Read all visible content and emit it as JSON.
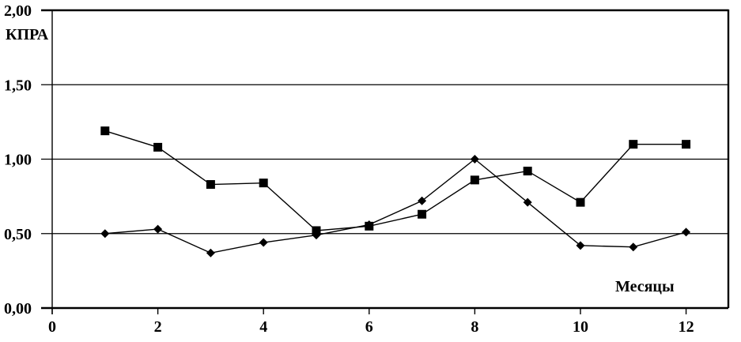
{
  "chart_data": {
    "type": "line",
    "title": "",
    "xlabel": "Месяцы",
    "ylabel": "КПРА",
    "x": [
      1,
      2,
      3,
      4,
      5,
      6,
      7,
      8,
      9,
      10,
      11,
      12
    ],
    "series": [
      {
        "name": "series-square",
        "marker": "square",
        "color": "#000000",
        "values": [
          1.19,
          1.08,
          0.83,
          0.84,
          0.52,
          0.55,
          0.63,
          0.86,
          0.92,
          0.71,
          1.1,
          1.1
        ]
      },
      {
        "name": "series-diamond",
        "marker": "diamond",
        "color": "#000000",
        "values": [
          0.5,
          0.53,
          0.37,
          0.44,
          0.49,
          0.56,
          0.72,
          1.0,
          0.71,
          0.42,
          0.41,
          0.51
        ]
      }
    ],
    "xlim": [
      0,
      12.8
    ],
    "ylim": [
      0,
      2
    ],
    "x_ticks": [
      {
        "value": 0,
        "label": "0"
      },
      {
        "value": 2,
        "label": "2"
      },
      {
        "value": 4,
        "label": "4"
      },
      {
        "value": 6,
        "label": "6"
      },
      {
        "value": 8,
        "label": "8"
      },
      {
        "value": 10,
        "label": "10"
      },
      {
        "value": 12,
        "label": "12"
      }
    ],
    "y_ticks": [
      {
        "value": 0.0,
        "label": "0,00"
      },
      {
        "value": 0.5,
        "label": "0,50"
      },
      {
        "value": 1.0,
        "label": "1,00"
      },
      {
        "value": 1.5,
        "label": "1,50"
      },
      {
        "value": 2.0,
        "label": "2,00"
      }
    ],
    "grid": true,
    "legend": "none",
    "colors": {
      "line": "#000000",
      "background": "#ffffff"
    }
  }
}
